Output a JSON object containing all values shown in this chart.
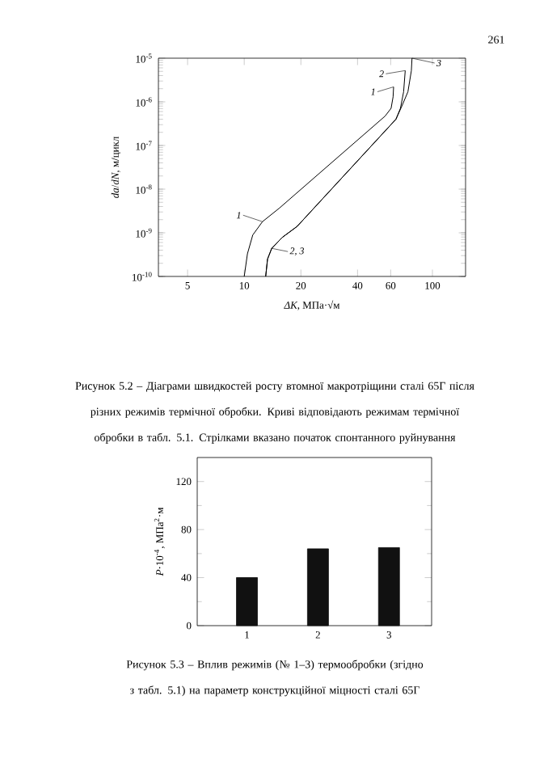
{
  "chart_data": [
    {
      "type": "line",
      "xlabel": "*ΔK*, МПа·√м",
      "ylabel": "*da*/*dN*, м/цикл",
      "log": "xy",
      "color": "#000000",
      "xlim": [
        3.5,
        150
      ],
      "ylim": [
        1e-10,
        1e-05
      ],
      "xticks": [
        5,
        10,
        20,
        40,
        60,
        100
      ],
      "yticks": [
        {
          "value": 1e-10,
          "label": "10$^{-10}$"
        },
        {
          "value": 1e-09,
          "label": "10$^{-9}$"
        },
        {
          "value": 1e-08,
          "label": "10$^{-8}$"
        },
        {
          "value": 1e-07,
          "label": "10$^{-7}$"
        },
        {
          "value": 1e-06,
          "label": "10$^{-6}$"
        },
        {
          "value": 1e-05,
          "label": "10$^{-5}$"
        }
      ],
      "series": [
        {
          "x": [
            10,
            10.4,
            11.1,
            12.5,
            15.4,
            56,
            60.3,
            61.8,
            62.2
          ],
          "values": [
            1e-10,
            3.3e-10,
            8.9e-10,
            1.8e-09,
            3.7e-09,
            4.7e-07,
            7.1e-07,
            1.3e-06,
            2.2e-06
          ]
        },
        {
          "x": [
            13,
            13.3,
            14,
            15.9,
            19.1,
            64,
            67.6,
            70.3,
            71.7
          ],
          "values": [
            1e-10,
            2.5e-10,
            4.4e-10,
            7.8e-10,
            1.4e-09,
            4e-07,
            7.1e-07,
            1.7e-06,
            5.2e-06
          ]
        },
        {
          "x": [
            13,
            13.3,
            14,
            15.9,
            19.1,
            64,
            68.9,
            74.1,
            77.3,
            77.9
          ],
          "values": [
            1e-10,
            2.5e-10,
            4.4e-10,
            7.8e-10,
            1.4e-09,
            4e-07,
            8.1e-07,
            1.7e-06,
            5.2e-06,
            1e-05
          ]
        }
      ],
      "annotations": [
        "261",
        "Рисунок 5.2 – Діаграми швидкостей росту втомної макротріщини сталі 65Г після різних режимів термічної обробки. Криві відповідають режимам термічної обробки в табл. 5.1. Стрілками вказано початок спонтанного руйнування",
        {
          "text": "1",
          "x": 12.5,
          "y": 1.8e-09
        },
        {
          "text": "2, 3",
          "x": 14,
          "y": 4.4e-10
        },
        {
          "text": "1",
          "x": 62.2,
          "y": 2.2e-06
        },
        {
          "text": "2",
          "x": 71.7,
          "y": 5.2e-06
        },
        {
          "text": "3",
          "x": 77.9,
          "y": 1e-05
        }
      ]
    },
    {
      "type": "bar",
      "ylabel": "*P*·10$^{-4}$, МПа$^{2}$·м",
      "categories": [
        "1",
        "2",
        "3"
      ],
      "values": [
        40,
        64,
        65
      ],
      "color": "#111111",
      "ylim": [
        0,
        140
      ],
      "yticks": [
        0,
        40,
        80,
        120
      ],
      "annotations": [
        "Рисунок 5.3 – Вплив режимів (№ 1–3) термообробки (згідно з табл. 5.1) на параметр конструкційної міцності сталі 65Г"
      ]
    }
  ]
}
